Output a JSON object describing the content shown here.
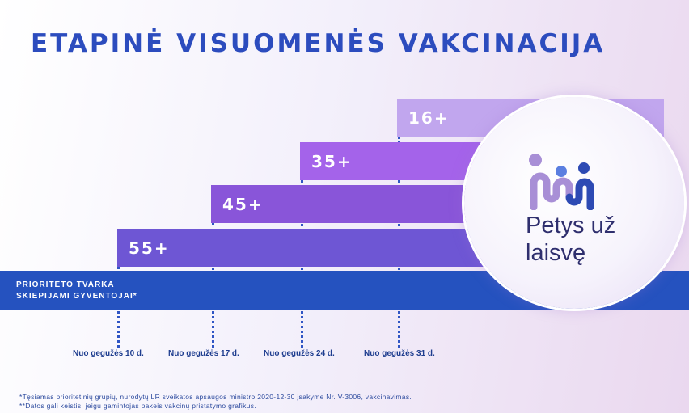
{
  "title": "ETAPINĖ VISUOMENĖS VAKCINACIJA",
  "steps": [
    {
      "label": "16+",
      "color": "#c1a6ee"
    },
    {
      "label": "35+",
      "color": "#a463ea"
    },
    {
      "label": "45+",
      "color": "#8955d9"
    },
    {
      "label": "55+",
      "color": "#6e56d4"
    }
  ],
  "priority": {
    "line1": "PRIORITETO TVARKA",
    "line2": "SKIEPIJAMI GYVENTOJAI*"
  },
  "dates": [
    "Nuo gegužės 10 d.",
    "Nuo gegužės 17 d.",
    "Nuo gegužės 24 d.",
    "Nuo gegužės 31 d."
  ],
  "logo": {
    "text": "Petys už\nlaisvę",
    "icon": "people-icon"
  },
  "footnotes": [
    "*Tęsiamas prioritetinių grupių, nurodytų LR sveikatos apsaugos ministro 2020-12-30 įsakyme Nr. V-3006, vakcinavimas.",
    "**Datos gali keistis, jeigu gamintojas pakeis vakcinų pristatymo grafikus."
  ],
  "colors": {
    "accent": "#2552bf",
    "title": "#2c4cbe"
  }
}
